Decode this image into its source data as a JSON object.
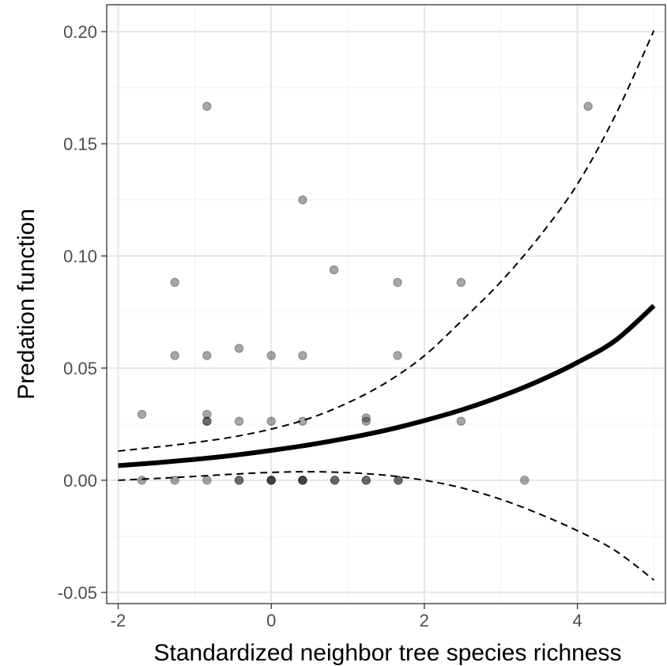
{
  "chart_data": {
    "type": "scatter",
    "title": "",
    "xlabel": "Standardized neighbor tree species richness",
    "ylabel": "Predation function",
    "xlim": [
      -2.15,
      5.15
    ],
    "ylim": [
      -0.055,
      0.212
    ],
    "x_ticks": [
      -2,
      0,
      2,
      4
    ],
    "x_tick_labels": [
      "-2",
      "0",
      "2",
      "4"
    ],
    "y_ticks": [
      -0.05,
      0.0,
      0.05,
      0.1,
      0.15,
      0.2
    ],
    "y_tick_labels": [
      "-0.05",
      "0.00",
      "0.05",
      "0.10",
      "0.15",
      "0.20"
    ],
    "grid": true,
    "legend": "none",
    "points": {
      "color": "#000000",
      "alpha": 0.35,
      "x": [
        -1.69,
        -1.26,
        -0.84,
        -0.42,
        -0.42,
        0.0,
        0.0,
        0.0,
        0.41,
        0.41,
        0.41,
        0.83,
        0.83,
        1.24,
        1.24,
        1.66,
        1.66,
        3.31,
        -1.69,
        -1.26,
        -1.26,
        -0.84,
        -0.84,
        -0.84,
        -0.84,
        -0.84,
        -0.42,
        -0.42,
        0.0,
        0.0,
        0.41,
        0.41,
        0.41,
        0.82,
        1.24,
        1.24,
        1.65,
        1.65,
        2.48,
        2.48,
        4.14
      ],
      "y": [
        0.0,
        0.0,
        0.0,
        0.0,
        0.0,
        0.0,
        0.0,
        0.0,
        0.0,
        0.0,
        0.0,
        0.0,
        0.0,
        0.0,
        0.0,
        0.0,
        0.0,
        0.0,
        0.0294,
        0.0556,
        0.0882,
        0.0294,
        0.0263,
        0.0263,
        0.0556,
        0.1667,
        0.0263,
        0.0588,
        0.0263,
        0.0556,
        0.0263,
        0.0556,
        0.125,
        0.0938,
        0.0263,
        0.0278,
        0.0556,
        0.0882,
        0.0263,
        0.0882,
        0.1667
      ]
    },
    "series": [
      {
        "name": "fit",
        "style": "solid",
        "x": [
          -2.0,
          -1.5,
          -1.0,
          -0.5,
          0.0,
          0.5,
          1.0,
          1.5,
          2.0,
          2.5,
          3.0,
          3.5,
          4.0,
          4.5,
          5.0
        ],
        "y": [
          0.0065,
          0.0078,
          0.0093,
          0.0111,
          0.0133,
          0.0158,
          0.0188,
          0.0223,
          0.0266,
          0.0315,
          0.0374,
          0.0443,
          0.0525,
          0.0624,
          0.0778
        ]
      },
      {
        "name": "upper",
        "style": "dashed",
        "x": [
          -2.0,
          -1.5,
          -1.0,
          -0.5,
          0.0,
          0.5,
          1.0,
          1.5,
          2.0,
          2.5,
          3.0,
          3.5,
          4.0,
          4.5,
          5.0
        ],
        "y": [
          0.013,
          0.0148,
          0.0168,
          0.0193,
          0.0228,
          0.0276,
          0.0345,
          0.0435,
          0.0555,
          0.0715,
          0.0885,
          0.1085,
          0.132,
          0.163,
          0.2005
        ]
      },
      {
        "name": "lower",
        "style": "dashed",
        "x": [
          -2.0,
          -1.5,
          -1.0,
          -0.5,
          0.0,
          0.5,
          1.0,
          1.5,
          2.0,
          2.5,
          3.0,
          3.5,
          4.0,
          4.5,
          5.0
        ],
        "y": [
          0.0,
          0.0008,
          0.0017,
          0.0027,
          0.0035,
          0.0038,
          0.0034,
          0.0022,
          0.0,
          -0.0035,
          -0.0085,
          -0.015,
          -0.0225,
          -0.0315,
          -0.0445
        ]
      }
    ]
  }
}
